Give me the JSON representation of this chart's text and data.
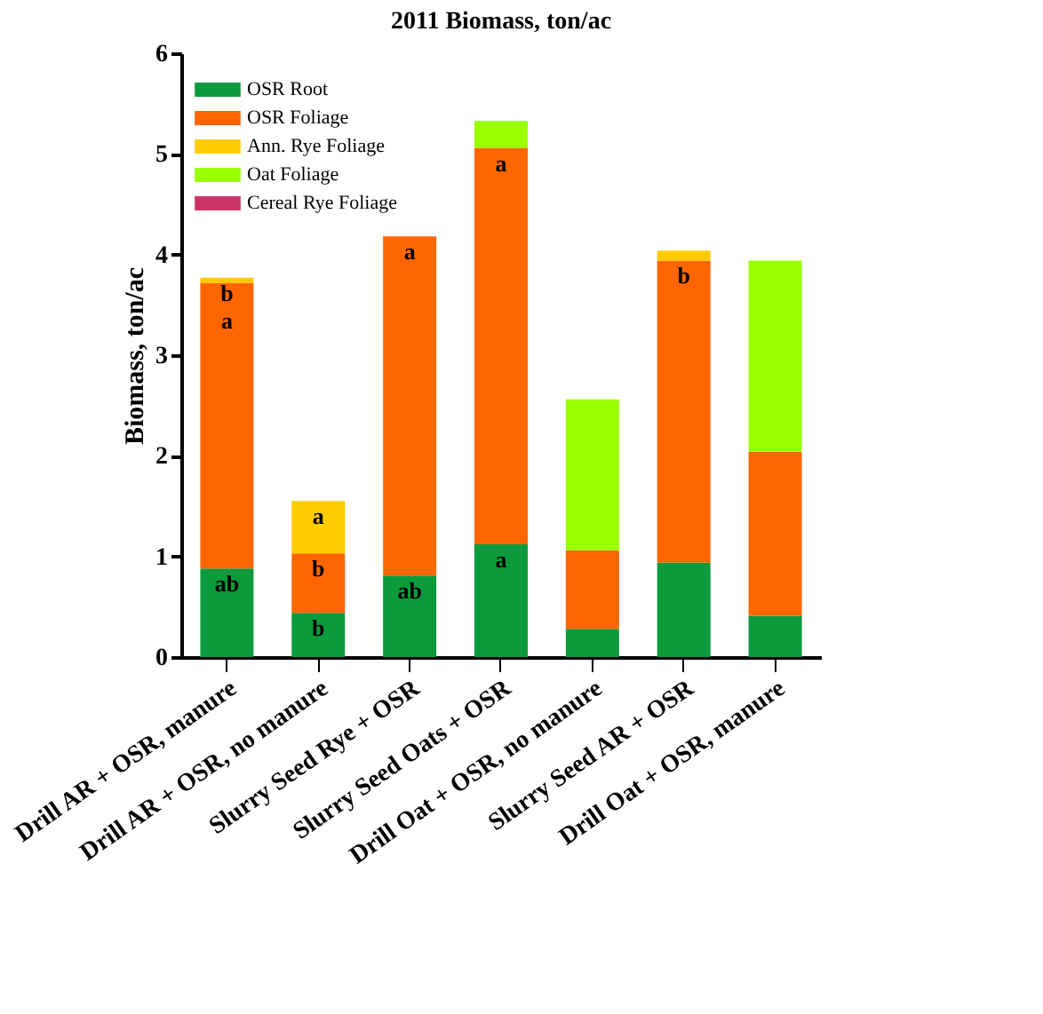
{
  "chart_data": {
    "type": "bar",
    "stacked": true,
    "title": "2011 Biomass, ton/ac",
    "ylabel": "Biomass, ton/ac",
    "categories": [
      "Drill AR + OSR, manure",
      "Drill AR + OSR, no manure",
      "Slurry Seed Rye + OSR",
      "Slurry Seed Oats + OSR",
      "Drill Oat + OSR, no manure",
      "Slurry Seed AR + OSR",
      "Drill Oat + OSR, manure"
    ],
    "series": [
      {
        "name": "OSR Root",
        "color": "#0c9a3c",
        "values": [
          0.88,
          0.44,
          0.81,
          1.12,
          0.28,
          0.94,
          0.41
        ],
        "value_labels": [
          "ab",
          "b",
          "ab",
          "a",
          null,
          null,
          null
        ]
      },
      {
        "name": "OSR Foliage",
        "color": "#ff6600",
        "values": [
          2.84,
          0.59,
          3.37,
          3.94,
          0.78,
          3.0,
          1.63
        ],
        "value_labels": [
          "a",
          "b",
          "a",
          "a",
          null,
          "b",
          null
        ]
      },
      {
        "name": "Ann. Rye Foliage",
        "color": "#ffcc00",
        "values": [
          0.05,
          0.52,
          0,
          0,
          0,
          0.1,
          0
        ],
        "value_labels": [
          "b",
          "a",
          null,
          null,
          null,
          null,
          null
        ]
      },
      {
        "name": "Oat Foliage",
        "color": "#99ff00",
        "values": [
          0,
          0,
          0,
          0.27,
          1.5,
          0,
          1.9
        ]
      },
      {
        "name": "Cereal Rye Foliage",
        "color": "#cc3366",
        "values": [
          0,
          0,
          0,
          0,
          0,
          0,
          0
        ]
      }
    ],
    "ylim": [
      0,
      6
    ],
    "yticks": [
      0,
      1,
      2,
      3,
      4,
      5,
      6
    ],
    "grid": false,
    "legend": "top left"
  }
}
